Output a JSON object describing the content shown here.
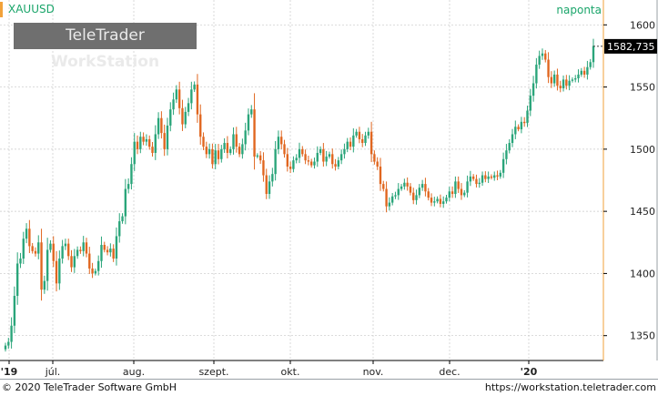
{
  "header": {
    "symbol": "XAUUSD",
    "interval": "naponta",
    "logo_text_a": "TeleTrader ",
    "logo_text_b": "WorkStation"
  },
  "footer": {
    "copyright": "© 2020 TeleTrader Software GmbH",
    "url": "https://workstation.teletrader.com"
  },
  "colors": {
    "up": "#2aa57a",
    "down": "#e0661f",
    "grid": "#c8c8c8",
    "axis_accent": "#f2a23a",
    "last_price_bg": "#000000"
  },
  "chart_data": {
    "type": "candlestick",
    "symbol": "XAUUSD",
    "interval": "naponta",
    "ylim": [
      1330,
      1620
    ],
    "y_ticks": [
      1350,
      1400,
      1450,
      1500,
      1550,
      1600
    ],
    "x_tick_labels": [
      "'19",
      "júl.",
      "aug.",
      "szept.",
      "okt.",
      "nov.",
      "dec.",
      "'20"
    ],
    "last_price": 1582.735,
    "last_price_label": "1582,735",
    "grid": true,
    "close": [
      1342,
      1345,
      1358,
      1382,
      1408,
      1412,
      1428,
      1436,
      1422,
      1418,
      1416,
      1425,
      1387,
      1394,
      1419,
      1424,
      1410,
      1392,
      1412,
      1422,
      1424,
      1414,
      1405,
      1414,
      1419,
      1418,
      1425,
      1416,
      1404,
      1400,
      1402,
      1410,
      1423,
      1419,
      1417,
      1420,
      1412,
      1430,
      1442,
      1446,
      1468,
      1472,
      1488,
      1506,
      1500,
      1510,
      1506,
      1508,
      1502,
      1497,
      1512,
      1525,
      1513,
      1500,
      1519,
      1532,
      1540,
      1548,
      1533,
      1520,
      1530,
      1537,
      1548,
      1552,
      1528,
      1510,
      1502,
      1496,
      1500,
      1488,
      1499,
      1492,
      1500,
      1505,
      1497,
      1500,
      1512,
      1502,
      1496,
      1504,
      1515,
      1528,
      1532,
      1494,
      1495,
      1491,
      1479,
      1464,
      1474,
      1480,
      1500,
      1510,
      1504,
      1496,
      1486,
      1484,
      1491,
      1493,
      1500,
      1496,
      1491,
      1490,
      1487,
      1490,
      1497,
      1500,
      1490,
      1494,
      1496,
      1488,
      1486,
      1491,
      1496,
      1500,
      1506,
      1502,
      1511,
      1514,
      1508,
      1505,
      1511,
      1514,
      1496,
      1490,
      1486,
      1472,
      1468,
      1454,
      1457,
      1462,
      1463,
      1468,
      1470,
      1473,
      1470,
      1465,
      1459,
      1463,
      1469,
      1472,
      1466,
      1461,
      1457,
      1458,
      1460,
      1456,
      1458,
      1461,
      1466,
      1464,
      1474,
      1468,
      1463,
      1465,
      1474,
      1478,
      1476,
      1472,
      1473,
      1479,
      1476,
      1478,
      1477,
      1479,
      1478,
      1481,
      1492,
      1499,
      1505,
      1512,
      1518,
      1516,
      1522,
      1521,
      1531,
      1543,
      1553,
      1568,
      1575,
      1577,
      1572,
      1558,
      1553,
      1560,
      1551,
      1549,
      1556,
      1551,
      1555,
      1556,
      1557,
      1560,
      1563,
      1560,
      1566,
      1570,
      1583
    ]
  }
}
